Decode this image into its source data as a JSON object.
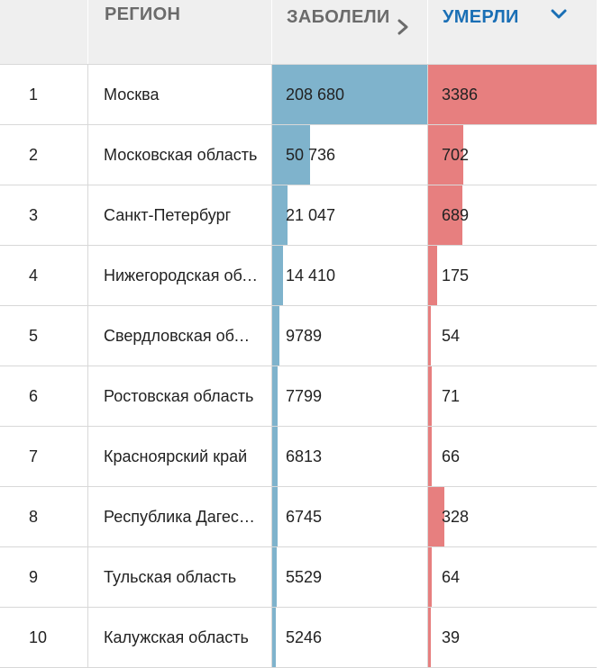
{
  "header": {
    "number": "",
    "region": "РЕГИОН",
    "cases": "ЗАБОЛЕЛИ",
    "deaths": "УМЕРЛИ"
  },
  "colors": {
    "cases_bar": "#7fb3cc",
    "deaths_bar": "#e77f7f",
    "active_header": "#1a6fb5",
    "header_bg": "#efefef"
  },
  "max": {
    "cases": 208680,
    "deaths": 3386
  },
  "rows": [
    {
      "num": "1",
      "region": "Москва",
      "cases": "208 680",
      "cases_value": 208680,
      "deaths": "3386",
      "deaths_value": 3386
    },
    {
      "num": "2",
      "region": "Московская область",
      "cases": "50 736",
      "cases_value": 50736,
      "deaths": "702",
      "deaths_value": 702
    },
    {
      "num": "3",
      "region": "Санкт-Петербург",
      "cases": "21 047",
      "cases_value": 21047,
      "deaths": "689",
      "deaths_value": 689
    },
    {
      "num": "4",
      "region": "Нижегородская область",
      "cases": "14 410",
      "cases_value": 14410,
      "deaths": "175",
      "deaths_value": 175
    },
    {
      "num": "5",
      "region": "Свердловская область",
      "cases": "9789",
      "cases_value": 9789,
      "deaths": "54",
      "deaths_value": 54
    },
    {
      "num": "6",
      "region": "Ростовская область",
      "cases": "7799",
      "cases_value": 7799,
      "deaths": "71",
      "deaths_value": 71
    },
    {
      "num": "7",
      "region": "Красноярский край",
      "cases": "6813",
      "cases_value": 6813,
      "deaths": "66",
      "deaths_value": 66
    },
    {
      "num": "8",
      "region": "Республика Дагестан",
      "cases": "6745",
      "cases_value": 6745,
      "deaths": "328",
      "deaths_value": 328
    },
    {
      "num": "9",
      "region": "Тульская область",
      "cases": "5529",
      "cases_value": 5529,
      "deaths": "64",
      "deaths_value": 64
    },
    {
      "num": "10",
      "region": "Калужская область",
      "cases": "5246",
      "cases_value": 5246,
      "deaths": "39",
      "deaths_value": 39
    }
  ]
}
